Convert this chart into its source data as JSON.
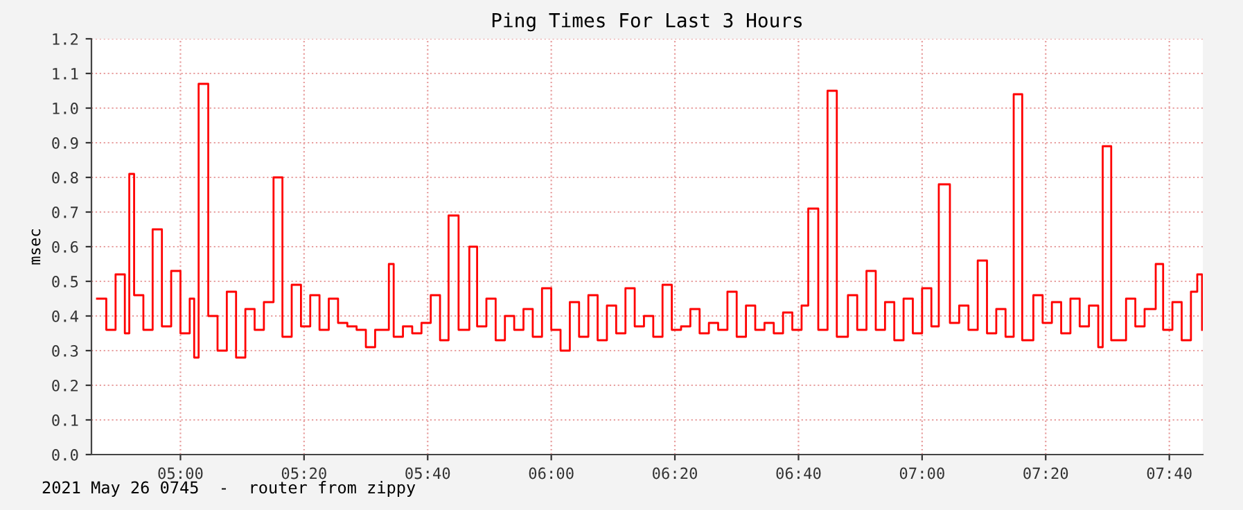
{
  "chart_data": {
    "type": "step",
    "title": "Ping Times For Last 3 Hours",
    "ylabel": "msec",
    "annotations": [
      "2021 May 26 0745  -  router from zippy"
    ],
    "x": [
      4.775,
      4.8,
      4.825,
      4.85,
      4.862,
      4.875,
      4.9,
      4.925,
      4.95,
      4.975,
      5.0,
      5.025,
      5.037,
      5.049,
      5.075,
      5.1,
      5.125,
      5.15,
      5.175,
      5.2,
      5.225,
      5.251,
      5.275,
      5.3,
      5.325,
      5.35,
      5.375,
      5.4,
      5.425,
      5.45,
      5.475,
      5.5,
      5.525,
      5.562,
      5.575,
      5.6,
      5.625,
      5.65,
      5.675,
      5.7,
      5.723,
      5.75,
      5.779,
      5.8,
      5.825,
      5.85,
      5.875,
      5.9,
      5.925,
      5.95,
      5.975,
      6.0,
      6.025,
      6.05,
      6.075,
      6.1,
      6.125,
      6.15,
      6.175,
      6.2,
      6.225,
      6.25,
      6.275,
      6.3,
      6.325,
      6.35,
      6.375,
      6.4,
      6.425,
      6.45,
      6.475,
      6.5,
      6.525,
      6.55,
      6.575,
      6.6,
      6.625,
      6.65,
      6.675,
      6.693,
      6.72,
      6.745,
      6.77,
      6.8,
      6.825,
      6.85,
      6.875,
      6.9,
      6.925,
      6.95,
      6.975,
      7.0,
      7.025,
      7.045,
      7.075,
      7.1,
      7.125,
      7.15,
      7.175,
      7.2,
      7.225,
      7.247,
      7.27,
      7.3,
      7.325,
      7.35,
      7.375,
      7.4,
      7.425,
      7.45,
      7.475,
      7.487,
      7.51,
      7.55,
      7.575,
      7.6,
      7.63,
      7.65,
      7.675,
      7.7,
      7.725,
      7.742,
      7.755
    ],
    "series": [
      {
        "color": "#ff0000",
        "values": [
          0.45,
          0.36,
          0.52,
          0.35,
          0.81,
          0.46,
          0.36,
          0.65,
          0.37,
          0.53,
          0.35,
          0.45,
          0.28,
          1.07,
          0.4,
          0.3,
          0.47,
          0.28,
          0.42,
          0.36,
          0.44,
          0.8,
          0.34,
          0.49,
          0.37,
          0.46,
          0.36,
          0.45,
          0.38,
          0.37,
          0.36,
          0.31,
          0.36,
          0.55,
          0.34,
          0.37,
          0.35,
          0.38,
          0.46,
          0.33,
          0.69,
          0.36,
          0.6,
          0.37,
          0.45,
          0.33,
          0.4,
          0.36,
          0.42,
          0.34,
          0.48,
          0.36,
          0.3,
          0.44,
          0.34,
          0.46,
          0.33,
          0.43,
          0.35,
          0.48,
          0.37,
          0.4,
          0.34,
          0.49,
          0.36,
          0.37,
          0.42,
          0.35,
          0.38,
          0.36,
          0.47,
          0.34,
          0.43,
          0.36,
          0.38,
          0.35,
          0.41,
          0.36,
          0.43,
          0.71,
          0.36,
          1.05,
          0.34,
          0.46,
          0.36,
          0.53,
          0.36,
          0.44,
          0.33,
          0.45,
          0.35,
          0.48,
          0.37,
          0.78,
          0.38,
          0.43,
          0.36,
          0.56,
          0.35,
          0.42,
          0.34,
          1.04,
          0.33,
          0.46,
          0.38,
          0.44,
          0.35,
          0.45,
          0.37,
          0.43,
          0.31,
          0.89,
          0.33,
          0.45,
          0.37,
          0.42,
          0.55,
          0.36,
          0.44,
          0.33,
          0.47,
          0.52,
          0.36
        ]
      }
    ],
    "xlim": [
      4.76,
      7.757
    ],
    "xticks": [
      {
        "value": 5.0,
        "label": "05:00"
      },
      {
        "value": 5.3333,
        "label": "05:20"
      },
      {
        "value": 5.6667,
        "label": "05:40"
      },
      {
        "value": 6.0,
        "label": "06:00"
      },
      {
        "value": 6.3333,
        "label": "06:20"
      },
      {
        "value": 6.6667,
        "label": "06:40"
      },
      {
        "value": 7.0,
        "label": "07:00"
      },
      {
        "value": 7.3333,
        "label": "07:20"
      },
      {
        "value": 7.6667,
        "label": "07:40"
      }
    ],
    "ylim": [
      0,
      1.2
    ],
    "yticks": [
      {
        "value": 0,
        "label": "0.0"
      },
      {
        "value": 0.1,
        "label": "0.1"
      },
      {
        "value": 0.2,
        "label": "0.2"
      },
      {
        "value": 0.3,
        "label": "0.3"
      },
      {
        "value": 0.4,
        "label": "0.4"
      },
      {
        "value": 0.5,
        "label": "0.5"
      },
      {
        "value": 0.6,
        "label": "0.6"
      },
      {
        "value": 0.7,
        "label": "0.7"
      },
      {
        "value": 0.8,
        "label": "0.8"
      },
      {
        "value": 0.9,
        "label": "0.9"
      },
      {
        "value": 1.0,
        "label": "1.0"
      },
      {
        "value": 1.1,
        "label": "1.1"
      },
      {
        "value": 1.2,
        "label": "1.2"
      }
    ],
    "grid": true,
    "legend": false
  }
}
